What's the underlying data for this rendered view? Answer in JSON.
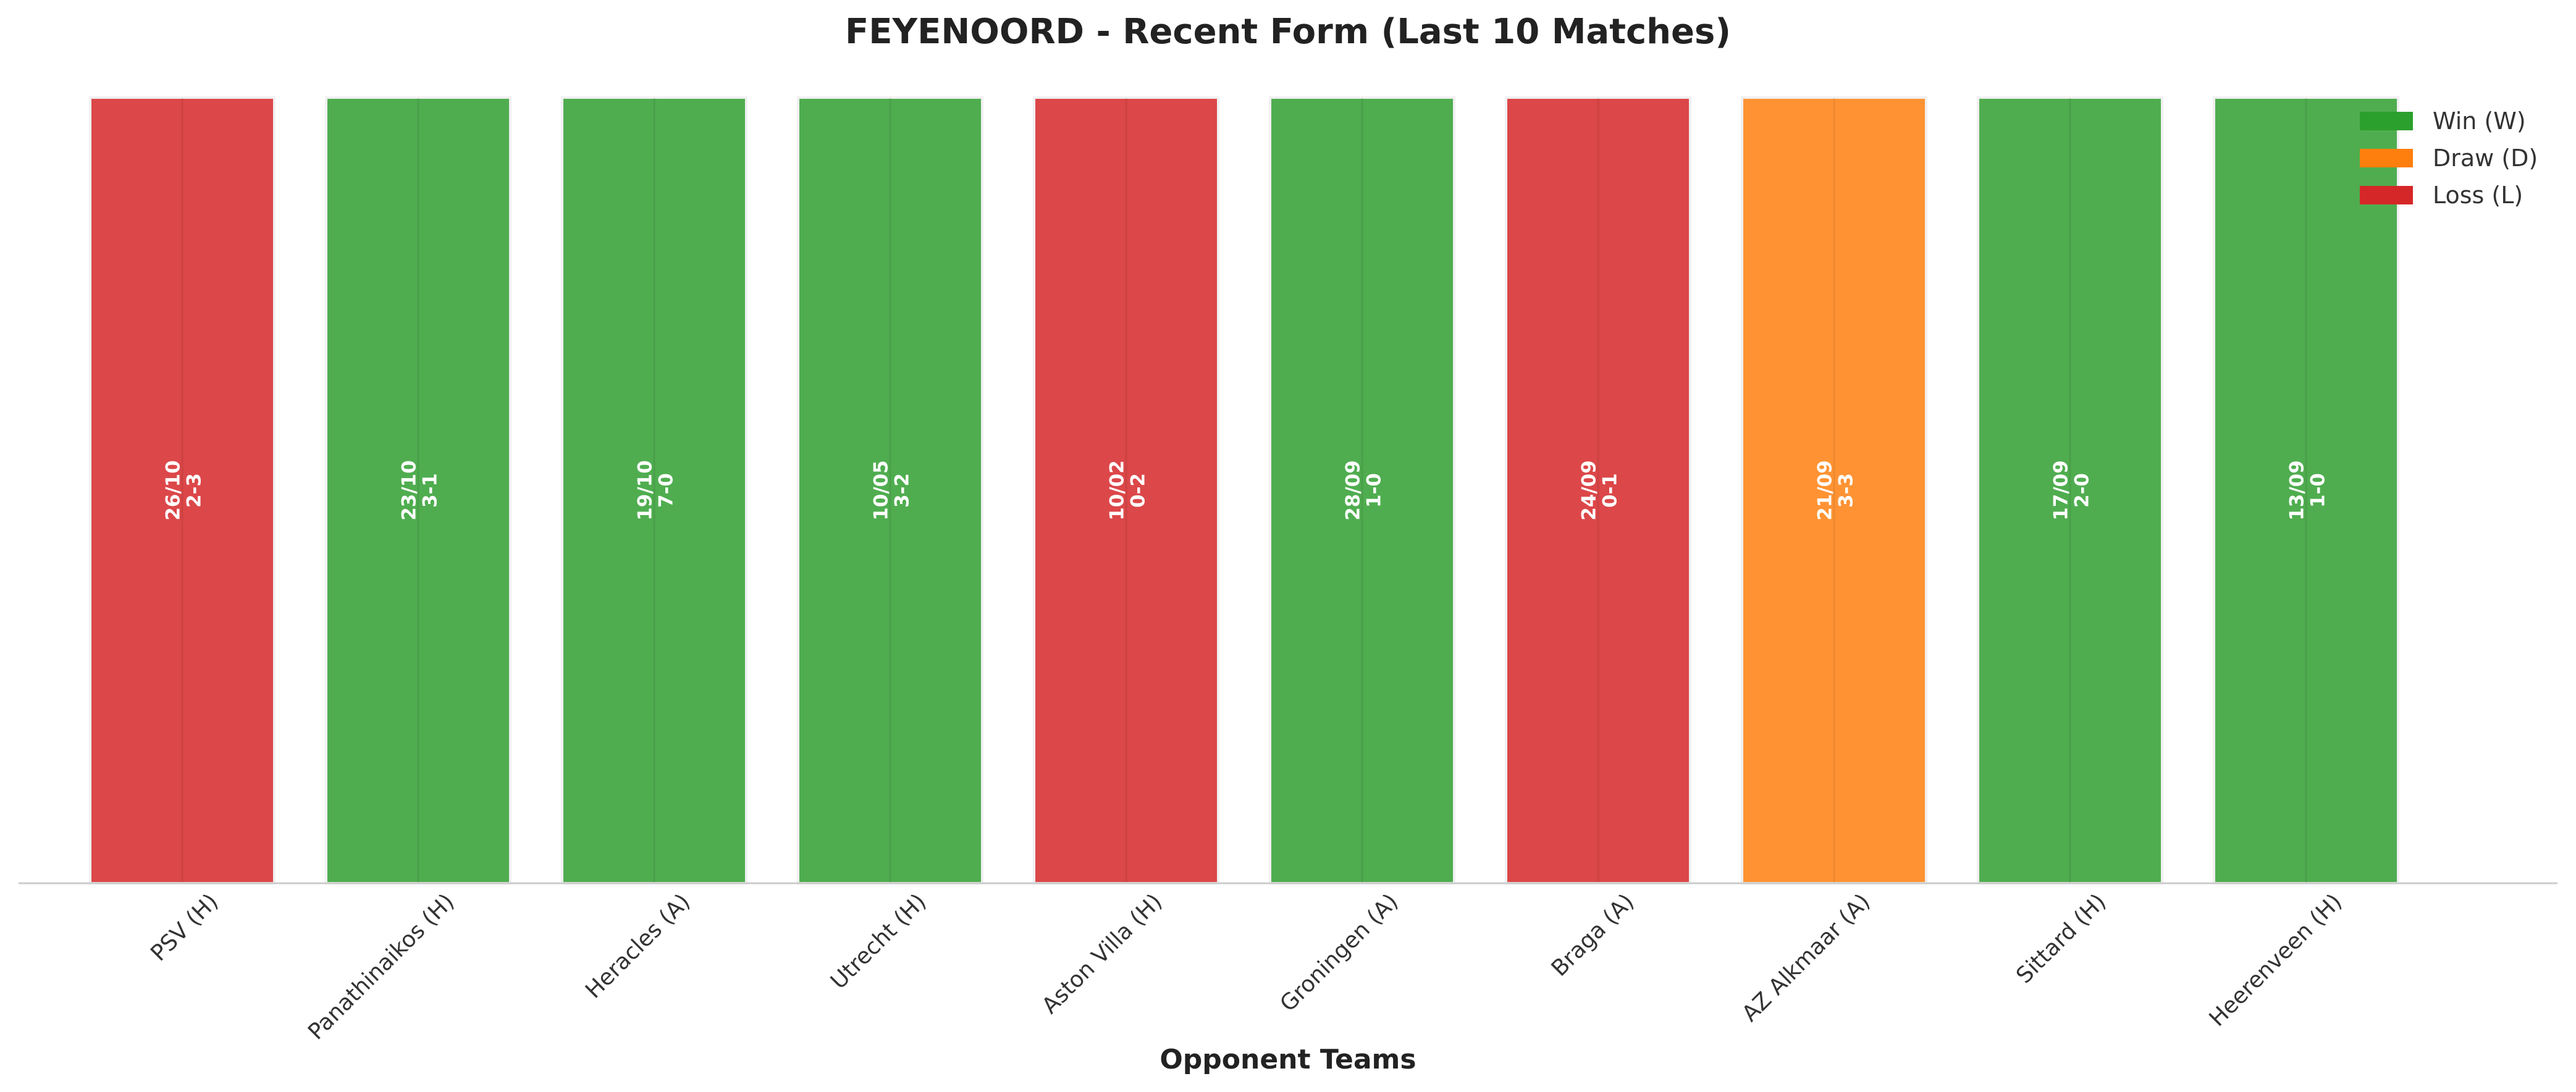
{
  "chart_data": {
    "type": "bar",
    "title": "FEYENOORD - Recent Form (Last 10 Matches)",
    "xlabel": "Opponent Teams",
    "ylabel": "",
    "ylim": [
      0,
      1
    ],
    "grid": false,
    "legend_position": "top-right",
    "categories": [
      "PSV (H)",
      "Panathinaikos (H)",
      "Heracles (A)",
      "Utrecht (H)",
      "Aston Villa (H)",
      "Groningen (A)",
      "Braga (A)",
      "AZ Alkmaar (A)",
      "Sittard (H)",
      "Heerenveen (H)"
    ],
    "values": [
      1,
      1,
      1,
      1,
      1,
      1,
      1,
      1,
      1,
      1
    ],
    "results": [
      "L",
      "W",
      "W",
      "W",
      "L",
      "W",
      "L",
      "D",
      "W",
      "W"
    ],
    "dates": [
      "26/10",
      "23/10",
      "19/10",
      "10/05",
      "10/02",
      "28/09",
      "24/09",
      "21/09",
      "17/09",
      "13/09"
    ],
    "scores": [
      "2-3",
      "3-1",
      "7-0",
      "3-2",
      "0-2",
      "1-0",
      "0-1",
      "3-3",
      "2-0",
      "1-0"
    ],
    "legend": [
      {
        "key": "W",
        "label": "Win (W)",
        "color": "#2ca02c"
      },
      {
        "key": "D",
        "label": "Draw (D)",
        "color": "#ff7f0e"
      },
      {
        "key": "L",
        "label": "Loss (L)",
        "color": "#d62728"
      }
    ],
    "bar_colors": {
      "W": "#4fad4f",
      "D": "#ff9333",
      "L": "#dc4749"
    }
  }
}
